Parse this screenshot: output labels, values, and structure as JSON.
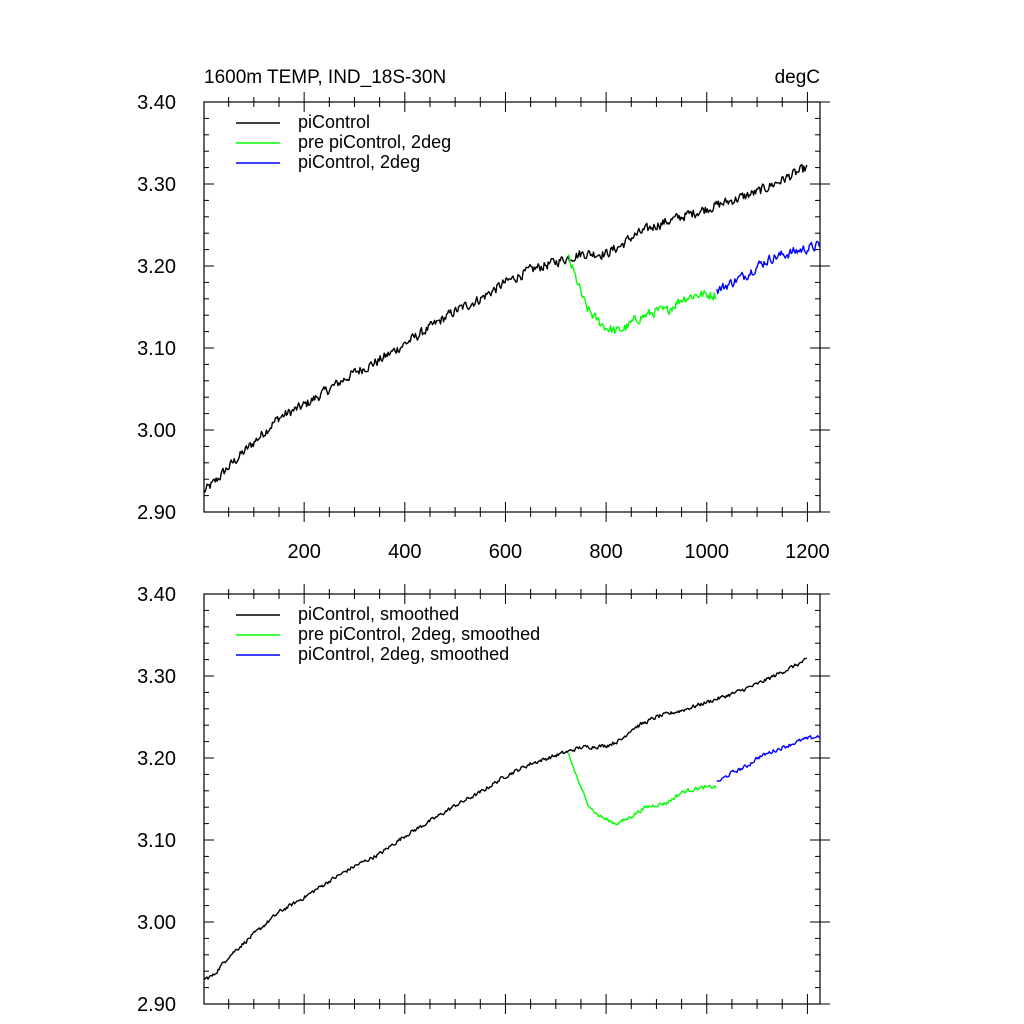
{
  "chart_data": [
    {
      "type": "line",
      "title_left": "1600m TEMP, IND_18S-30N",
      "title_right": "degC",
      "xlim": [
        1,
        1225
      ],
      "ylim": [
        2.9,
        3.4
      ],
      "xticks": [
        200,
        400,
        600,
        800,
        1000,
        1200
      ],
      "xtick_labels": [
        "200",
        "400",
        "600",
        "800",
        "1000",
        "1200"
      ],
      "yticks": [
        2.9,
        3.0,
        3.1,
        3.2,
        3.3,
        3.4
      ],
      "ytick_labels": [
        "2.90",
        "3.00",
        "3.10",
        "3.20",
        "3.30",
        "3.40"
      ],
      "legend_position": "top-left",
      "series": [
        {
          "name": "piControl",
          "color": "#000000",
          "x": [
            1,
            20,
            50,
            100,
            150,
            200,
            250,
            300,
            350,
            400,
            450,
            500,
            550,
            600,
            650,
            700,
            725,
            750,
            780,
            800,
            830,
            850,
            900,
            950,
            1000,
            1050,
            1100,
            1150,
            1200
          ],
          "y": [
            2.925,
            2.935,
            2.955,
            2.985,
            3.015,
            3.03,
            3.05,
            3.07,
            3.085,
            3.105,
            3.125,
            3.145,
            3.16,
            3.18,
            3.195,
            3.205,
            3.21,
            3.215,
            3.215,
            3.215,
            3.225,
            3.235,
            3.25,
            3.26,
            3.27,
            3.28,
            3.29,
            3.305,
            3.32
          ]
        },
        {
          "name": "pre piControl, 2deg",
          "color": "#00ff00",
          "x": [
            725,
            740,
            760,
            780,
            800,
            820,
            840,
            860,
            880,
            900,
            920,
            950,
            980,
            1000,
            1020
          ],
          "y": [
            3.21,
            3.185,
            3.15,
            3.135,
            3.125,
            3.12,
            3.125,
            3.135,
            3.14,
            3.145,
            3.145,
            3.16,
            3.165,
            3.165,
            3.165
          ]
        },
        {
          "name": "piControl, 2deg",
          "color": "#0000ff",
          "x": [
            1020,
            1050,
            1080,
            1100,
            1130,
            1160,
            1190,
            1225
          ],
          "y": [
            3.17,
            3.18,
            3.19,
            3.2,
            3.21,
            3.215,
            3.22,
            3.225
          ]
        }
      ]
    },
    {
      "type": "line",
      "xlim": [
        1,
        1225
      ],
      "ylim": [
        2.9,
        3.4
      ],
      "xticks": [
        200,
        400,
        600,
        800,
        1000,
        1200
      ],
      "yticks": [
        2.9,
        3.0,
        3.1,
        3.2,
        3.3,
        3.4
      ],
      "ytick_labels": [
        "2.90",
        "3.00",
        "3.10",
        "3.20",
        "3.30",
        "3.40"
      ],
      "legend_position": "top-left",
      "series": [
        {
          "name": "piControl, smoothed",
          "color": "#000000",
          "x": [
            1,
            20,
            50,
            100,
            150,
            200,
            250,
            300,
            350,
            400,
            450,
            500,
            550,
            600,
            650,
            700,
            725,
            750,
            780,
            800,
            830,
            850,
            900,
            950,
            1000,
            1050,
            1100,
            1150,
            1200
          ],
          "y": [
            2.93,
            2.935,
            2.958,
            2.985,
            3.012,
            3.03,
            3.05,
            3.068,
            3.083,
            3.105,
            3.123,
            3.142,
            3.158,
            3.178,
            3.193,
            3.203,
            3.208,
            3.213,
            3.214,
            3.215,
            3.222,
            3.235,
            3.25,
            3.258,
            3.268,
            3.278,
            3.29,
            3.305,
            3.32
          ]
        },
        {
          "name": "pre piControl, 2deg, smoothed",
          "color": "#00ff00",
          "x": [
            725,
            740,
            760,
            780,
            800,
            820,
            840,
            860,
            880,
            900,
            920,
            950,
            980,
            1000,
            1020
          ],
          "y": [
            3.205,
            3.18,
            3.148,
            3.132,
            3.125,
            3.12,
            3.125,
            3.133,
            3.14,
            3.143,
            3.145,
            3.158,
            3.163,
            3.164,
            3.165
          ]
        },
        {
          "name": "piControl, 2deg, smoothed",
          "color": "#0000ff",
          "x": [
            1020,
            1050,
            1080,
            1100,
            1130,
            1160,
            1190,
            1225
          ],
          "y": [
            3.17,
            3.182,
            3.19,
            3.2,
            3.208,
            3.215,
            3.222,
            3.227
          ]
        }
      ]
    }
  ]
}
